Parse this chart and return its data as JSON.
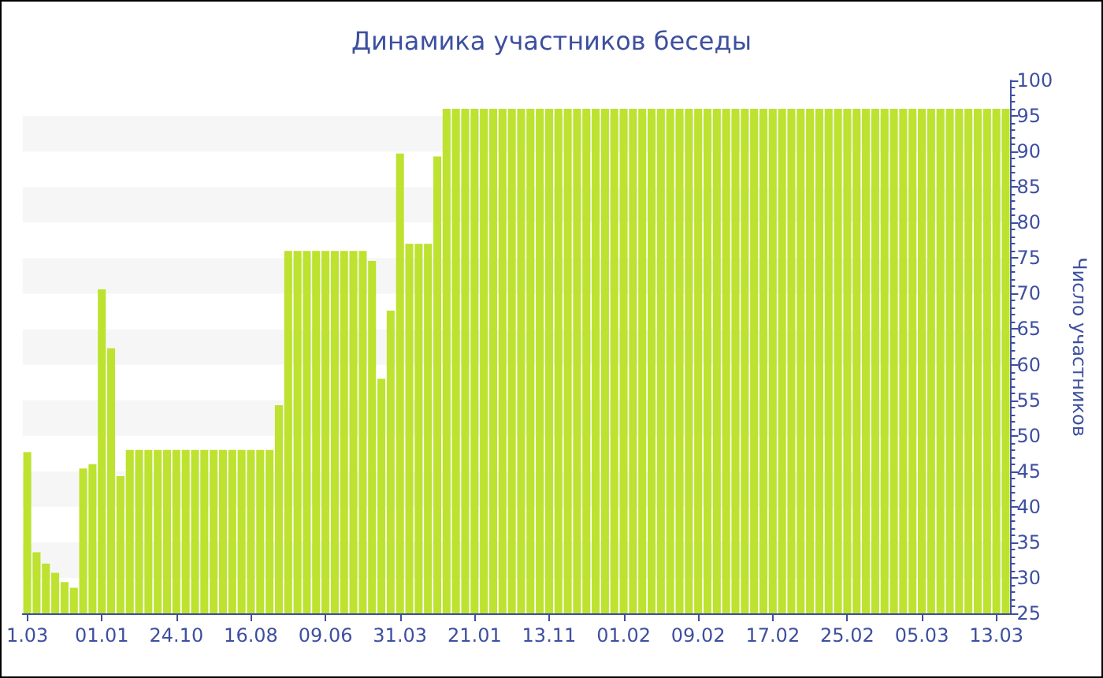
{
  "chart_data": {
    "type": "bar",
    "title": "Динамика участников беседы",
    "ylabel": "Число участников",
    "categories": [
      "1.03",
      null,
      null,
      null,
      null,
      null,
      null,
      null,
      "01.01",
      null,
      null,
      null,
      null,
      null,
      null,
      null,
      "24.10",
      null,
      null,
      null,
      null,
      null,
      null,
      null,
      "16.08",
      null,
      null,
      null,
      null,
      null,
      null,
      null,
      "09.06",
      null,
      null,
      null,
      null,
      null,
      null,
      null,
      "31.03",
      null,
      null,
      null,
      null,
      null,
      null,
      null,
      "21.01",
      null,
      null,
      null,
      null,
      null,
      null,
      null,
      "13.11",
      null,
      null,
      null,
      null,
      null,
      null,
      null,
      "01.02",
      null,
      null,
      null,
      null,
      null,
      null,
      null,
      "09.02",
      null,
      null,
      null,
      null,
      null,
      null,
      null,
      "17.02",
      null,
      null,
      null,
      null,
      null,
      null,
      null,
      "25.02",
      null,
      null,
      null,
      null,
      null,
      null,
      null,
      "05.03",
      null,
      null,
      null,
      null,
      null,
      null,
      null,
      "13.03",
      null
    ],
    "values": [
      47.7,
      33.6,
      32,
      30.7,
      29.4,
      28.6,
      45.4,
      46,
      70.6,
      62.3,
      44.3,
      48,
      48,
      48,
      48,
      48,
      48,
      48,
      48,
      48,
      48,
      48,
      48,
      48,
      48,
      48,
      48,
      54.3,
      76,
      76,
      76,
      76,
      76,
      76,
      76,
      76,
      76,
      74.6,
      58,
      67.6,
      89.7,
      77,
      77,
      77,
      89.3,
      96,
      96,
      96,
      96,
      96,
      96,
      96,
      96,
      96,
      96,
      96,
      96,
      96,
      96,
      96,
      96,
      96,
      96,
      96,
      96,
      96,
      96,
      96,
      96,
      96,
      96,
      96,
      96,
      96,
      96,
      96,
      96,
      96,
      96,
      96,
      96,
      96,
      96,
      96,
      96,
      96,
      96,
      96,
      96,
      96,
      96,
      96,
      96,
      96,
      96,
      96,
      96,
      96,
      96,
      96,
      96,
      96,
      96,
      96,
      96,
      96
    ],
    "color": "#bde22f",
    "ylim": [
      25,
      100
    ],
    "yticks": [
      25,
      30,
      35,
      40,
      45,
      50,
      55,
      60,
      65,
      70,
      75,
      80,
      85,
      90,
      95,
      100
    ]
  }
}
